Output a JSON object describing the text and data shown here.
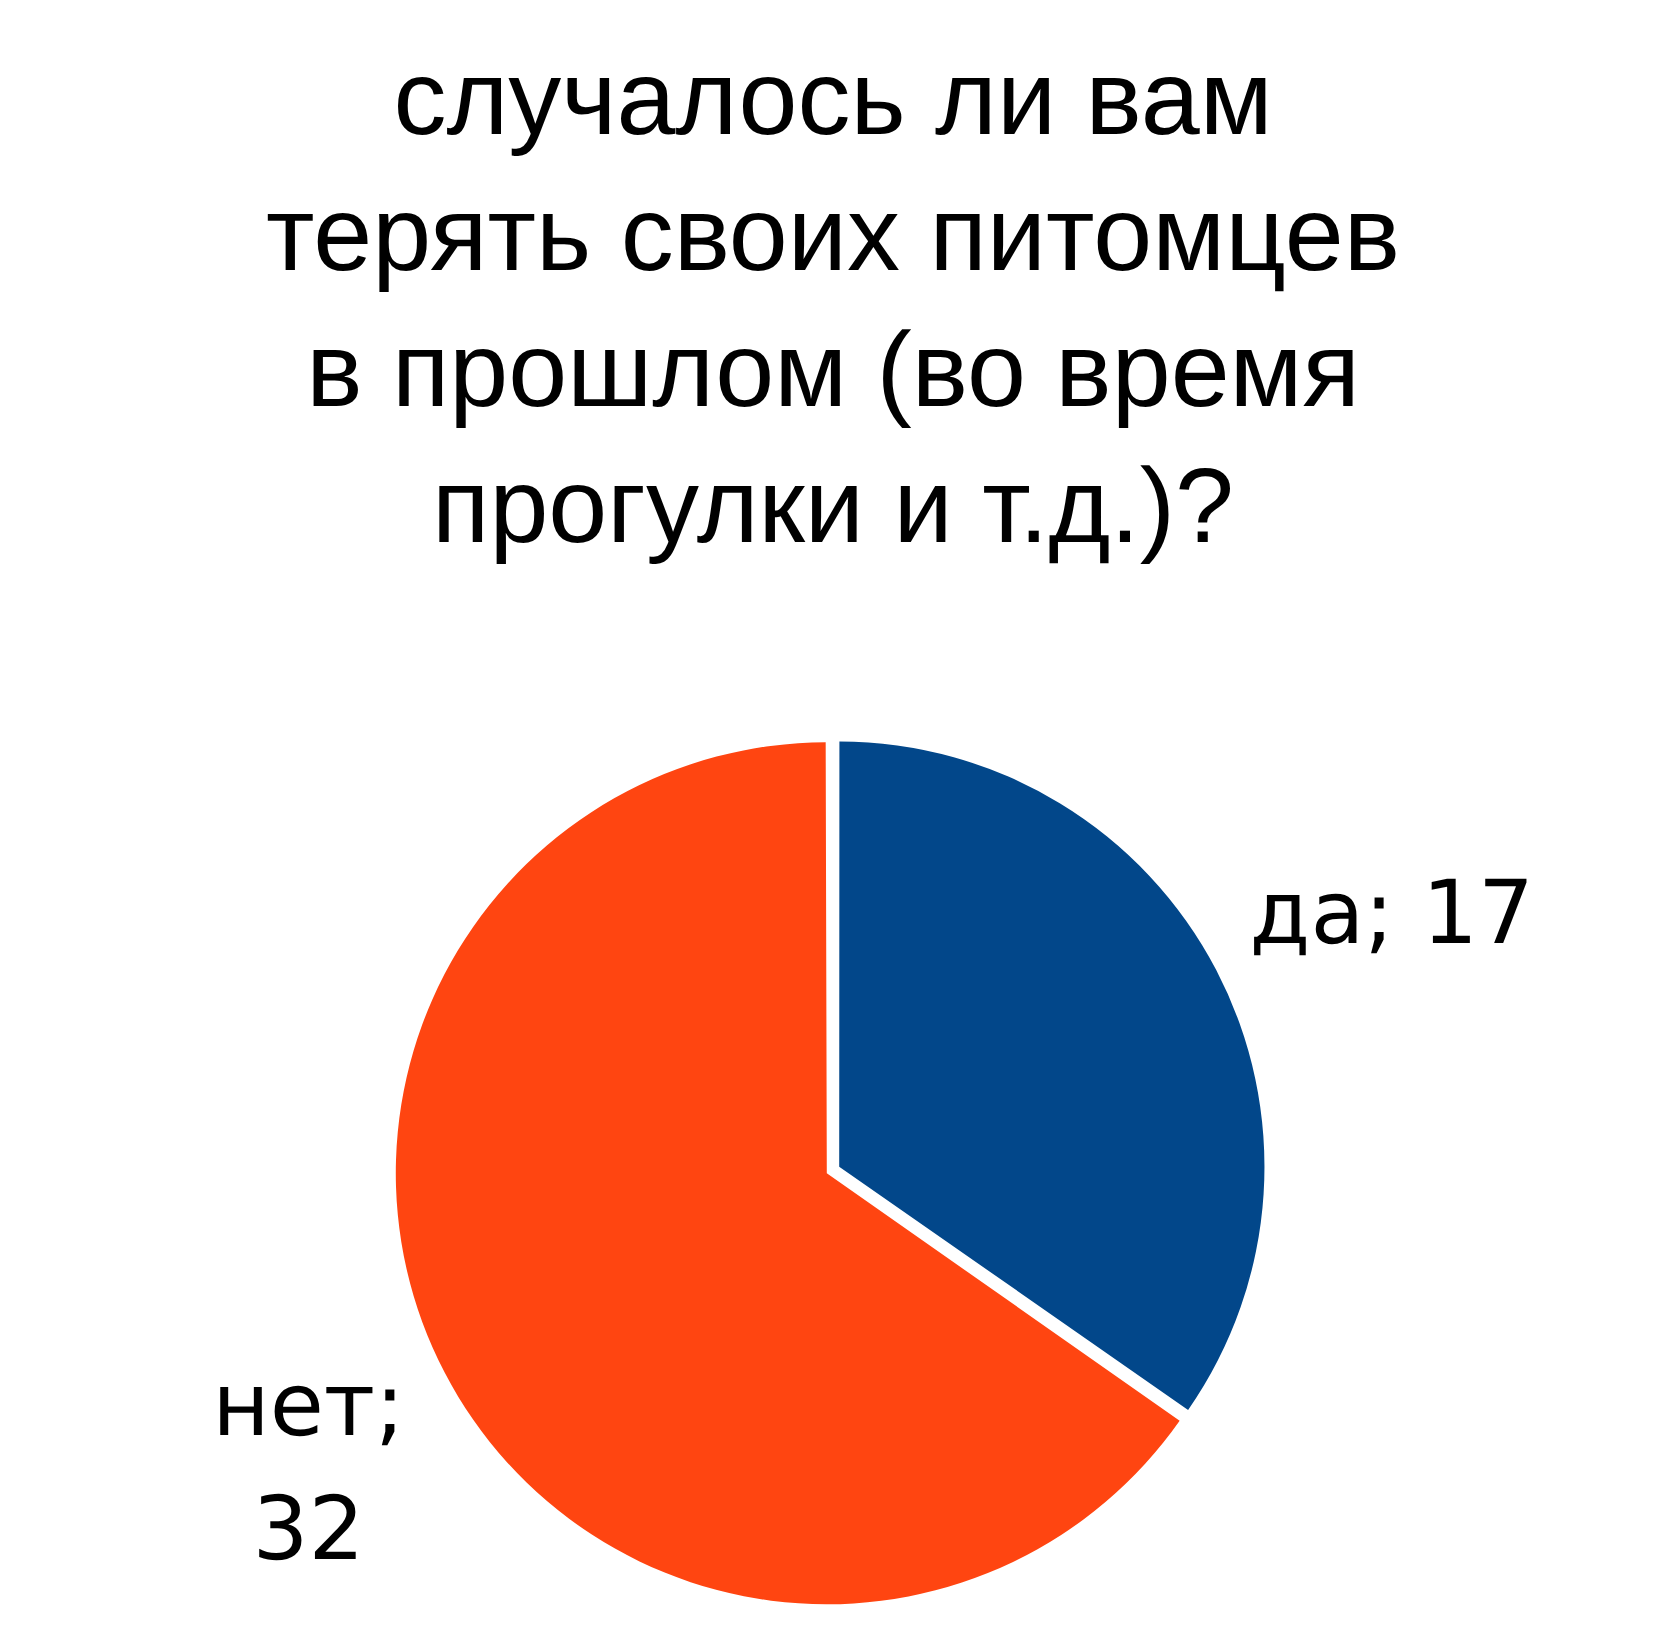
{
  "chart_data": {
    "type": "pie",
    "title": "случалось ли вам терять своих питомцев в прошлом (во время прогулки и т.д.)?",
    "categories": [
      "да",
      "нет"
    ],
    "values": [
      17,
      32
    ],
    "value_labels": [
      "; 17",
      "; 32"
    ],
    "colors": [
      "#02478a",
      "#ff4511"
    ]
  }
}
